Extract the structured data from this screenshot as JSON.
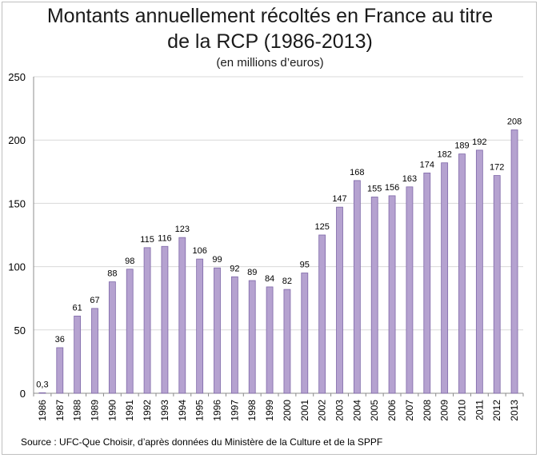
{
  "chart_data": {
    "type": "bar",
    "title_line1": "Montants annuellement récoltés en France au titre",
    "title_line2": "de la RCP (1986-2013)",
    "subtitle": "(en millions d’euros)",
    "xlabel": "",
    "ylabel": "",
    "ylim": [
      0,
      250
    ],
    "yticks": [
      0,
      50,
      100,
      150,
      200,
      250
    ],
    "grid": true,
    "bar_color": "#b5a2d0",
    "bar_edge_color": "#7e67a8",
    "categories": [
      "1986",
      "1987",
      "1988",
      "1989",
      "1990",
      "1991",
      "1992",
      "1993",
      "1994",
      "1995",
      "1996",
      "1997",
      "1998",
      "1999",
      "2000",
      "2001",
      "2002",
      "2003",
      "2004",
      "2005",
      "2006",
      "2007",
      "2008",
      "2009",
      "2010",
      "2011",
      "2012",
      "2013"
    ],
    "values": [
      0.3,
      36,
      61,
      67,
      88,
      98,
      115,
      116,
      123,
      106,
      99,
      92,
      89,
      84,
      82,
      95,
      125,
      147,
      168,
      155,
      156,
      163,
      174,
      182,
      189,
      192,
      172,
      208
    ],
    "data_labels": [
      "0,3",
      "36",
      "61",
      "67",
      "88",
      "98",
      "115",
      "116",
      "123",
      "106",
      "99",
      "92",
      "89",
      "84",
      "82",
      "95",
      "125",
      "147",
      "168",
      "155",
      "156",
      "163",
      "174",
      "182",
      "189",
      "192",
      "172",
      "208"
    ]
  },
  "source": "Source : UFC-Que Choisir, d’après données du Ministère de la Culture et de la SPPF"
}
